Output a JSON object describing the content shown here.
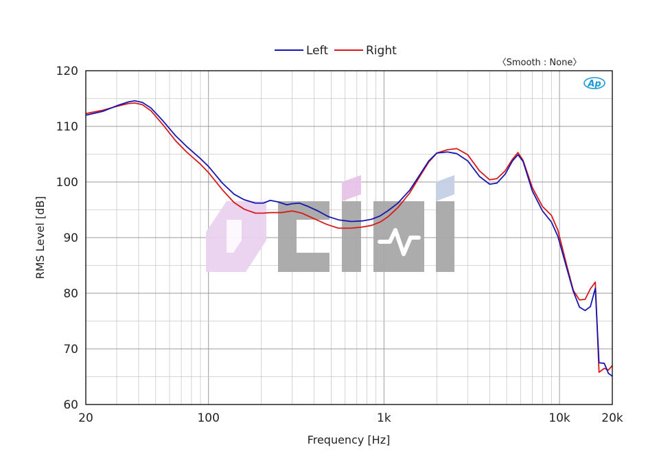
{
  "chart_data": {
    "type": "line",
    "xscale": "log",
    "xlabel": "Frequency [Hz]",
    "ylabel": "RMS Level [dB]",
    "xlim": [
      20,
      20000
    ],
    "ylim": [
      60,
      120
    ],
    "grid": true,
    "legend_position": "top-center",
    "annotation": "〈Smooth : None〉",
    "ap_logo_text": "Ap",
    "watermark_text": "cifi",
    "x_ticks": [
      {
        "value": 20,
        "label": "20"
      },
      {
        "value": 100,
        "label": "100"
      },
      {
        "value": 1000,
        "label": "1k"
      },
      {
        "value": 10000,
        "label": "10k"
      },
      {
        "value": 20000,
        "label": "20k"
      }
    ],
    "y_ticks": [
      {
        "value": 60,
        "label": "60"
      },
      {
        "value": 70,
        "label": "70"
      },
      {
        "value": 80,
        "label": "80"
      },
      {
        "value": 90,
        "label": "90"
      },
      {
        "value": 100,
        "label": "100"
      },
      {
        "value": 110,
        "label": "110"
      },
      {
        "value": 120,
        "label": "120"
      }
    ],
    "series": [
      {
        "name": "Left",
        "color": "#1515b0",
        "points": [
          [
            20,
            112.0
          ],
          [
            25,
            112.7
          ],
          [
            30,
            113.7
          ],
          [
            35,
            114.4
          ],
          [
            38,
            114.6
          ],
          [
            42,
            114.3
          ],
          [
            47,
            113.3
          ],
          [
            55,
            111.0
          ],
          [
            65,
            108.3
          ],
          [
            75,
            106.4
          ],
          [
            90,
            104.2
          ],
          [
            100,
            102.8
          ],
          [
            120,
            99.8
          ],
          [
            140,
            97.8
          ],
          [
            160,
            96.8
          ],
          [
            185,
            96.2
          ],
          [
            205,
            96.2
          ],
          [
            225,
            96.7
          ],
          [
            250,
            96.4
          ],
          [
            280,
            95.9
          ],
          [
            300,
            96.1
          ],
          [
            330,
            96.2
          ],
          [
            370,
            95.6
          ],
          [
            420,
            94.8
          ],
          [
            480,
            93.8
          ],
          [
            550,
            93.2
          ],
          [
            650,
            92.9
          ],
          [
            750,
            93.0
          ],
          [
            850,
            93.3
          ],
          [
            950,
            93.9
          ],
          [
            1050,
            94.8
          ],
          [
            1200,
            96.2
          ],
          [
            1400,
            98.5
          ],
          [
            1600,
            101.3
          ],
          [
            1800,
            103.8
          ],
          [
            2000,
            105.2
          ],
          [
            2300,
            105.4
          ],
          [
            2600,
            105.1
          ],
          [
            3000,
            103.8
          ],
          [
            3500,
            101.0
          ],
          [
            4000,
            99.6
          ],
          [
            4400,
            99.8
          ],
          [
            4900,
            101.4
          ],
          [
            5400,
            103.8
          ],
          [
            5800,
            104.9
          ],
          [
            6200,
            103.7
          ],
          [
            7000,
            98.4
          ],
          [
            8000,
            94.8
          ],
          [
            9000,
            92.8
          ],
          [
            9800,
            90.2
          ],
          [
            11000,
            84.5
          ],
          [
            12000,
            80.3
          ],
          [
            13000,
            77.5
          ],
          [
            14000,
            76.9
          ],
          [
            15000,
            77.6
          ],
          [
            16000,
            80.9
          ],
          [
            16800,
            67.5
          ],
          [
            18000,
            67.4
          ],
          [
            19000,
            65.6
          ],
          [
            20000,
            65.1
          ]
        ]
      },
      {
        "name": "Right",
        "color": "#d81818",
        "points": [
          [
            20,
            112.3
          ],
          [
            25,
            112.9
          ],
          [
            30,
            113.6
          ],
          [
            35,
            114.1
          ],
          [
            38,
            114.2
          ],
          [
            42,
            113.9
          ],
          [
            47,
            112.8
          ],
          [
            55,
            110.3
          ],
          [
            65,
            107.4
          ],
          [
            75,
            105.4
          ],
          [
            90,
            103.2
          ],
          [
            100,
            101.7
          ],
          [
            120,
            98.6
          ],
          [
            140,
            96.3
          ],
          [
            160,
            95.1
          ],
          [
            185,
            94.4
          ],
          [
            205,
            94.4
          ],
          [
            225,
            94.5
          ],
          [
            260,
            94.5
          ],
          [
            300,
            94.8
          ],
          [
            340,
            94.4
          ],
          [
            400,
            93.4
          ],
          [
            470,
            92.4
          ],
          [
            550,
            91.7
          ],
          [
            650,
            91.7
          ],
          [
            750,
            91.9
          ],
          [
            850,
            92.2
          ],
          [
            950,
            92.8
          ],
          [
            1050,
            93.7
          ],
          [
            1200,
            95.4
          ],
          [
            1400,
            98.0
          ],
          [
            1600,
            101.0
          ],
          [
            1800,
            103.6
          ],
          [
            2000,
            105.2
          ],
          [
            2300,
            105.8
          ],
          [
            2600,
            106.0
          ],
          [
            3000,
            104.9
          ],
          [
            3500,
            102.0
          ],
          [
            4000,
            100.4
          ],
          [
            4400,
            100.6
          ],
          [
            4900,
            102.0
          ],
          [
            5400,
            104.1
          ],
          [
            5800,
            105.3
          ],
          [
            6200,
            103.9
          ],
          [
            7000,
            99.0
          ],
          [
            8000,
            95.6
          ],
          [
            9000,
            94.0
          ],
          [
            9800,
            91.3
          ],
          [
            11000,
            85.0
          ],
          [
            12000,
            80.5
          ],
          [
            13000,
            78.8
          ],
          [
            14000,
            78.9
          ],
          [
            15000,
            80.8
          ],
          [
            16000,
            82.0
          ],
          [
            16800,
            65.8
          ],
          [
            18000,
            66.5
          ],
          [
            19000,
            66.2
          ],
          [
            20000,
            67.0
          ]
        ]
      }
    ]
  }
}
